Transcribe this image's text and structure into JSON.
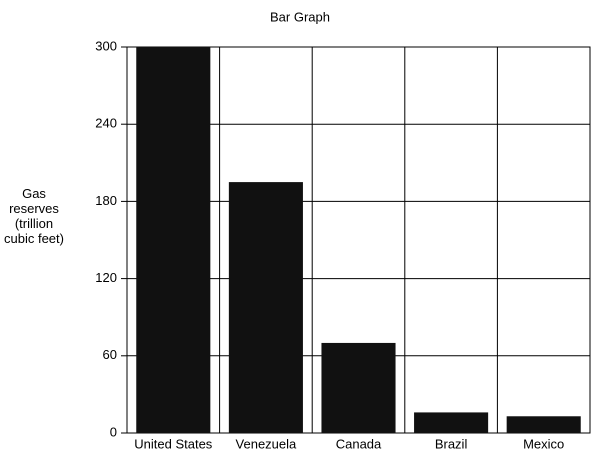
{
  "chart_data": {
    "type": "bar",
    "title": "Bar Graph",
    "y_label": "Gas reserves (trillion cubic feet)",
    "categories": [
      "United States",
      "Venezuela",
      "Canada",
      "Brazil",
      "Mexico"
    ],
    "values": [
      300,
      195,
      70,
      16,
      13
    ],
    "color": "#111111",
    "ylim": [
      0,
      300
    ],
    "yticks": [
      0,
      60,
      120,
      180,
      240,
      300
    ],
    "grid": true
  }
}
